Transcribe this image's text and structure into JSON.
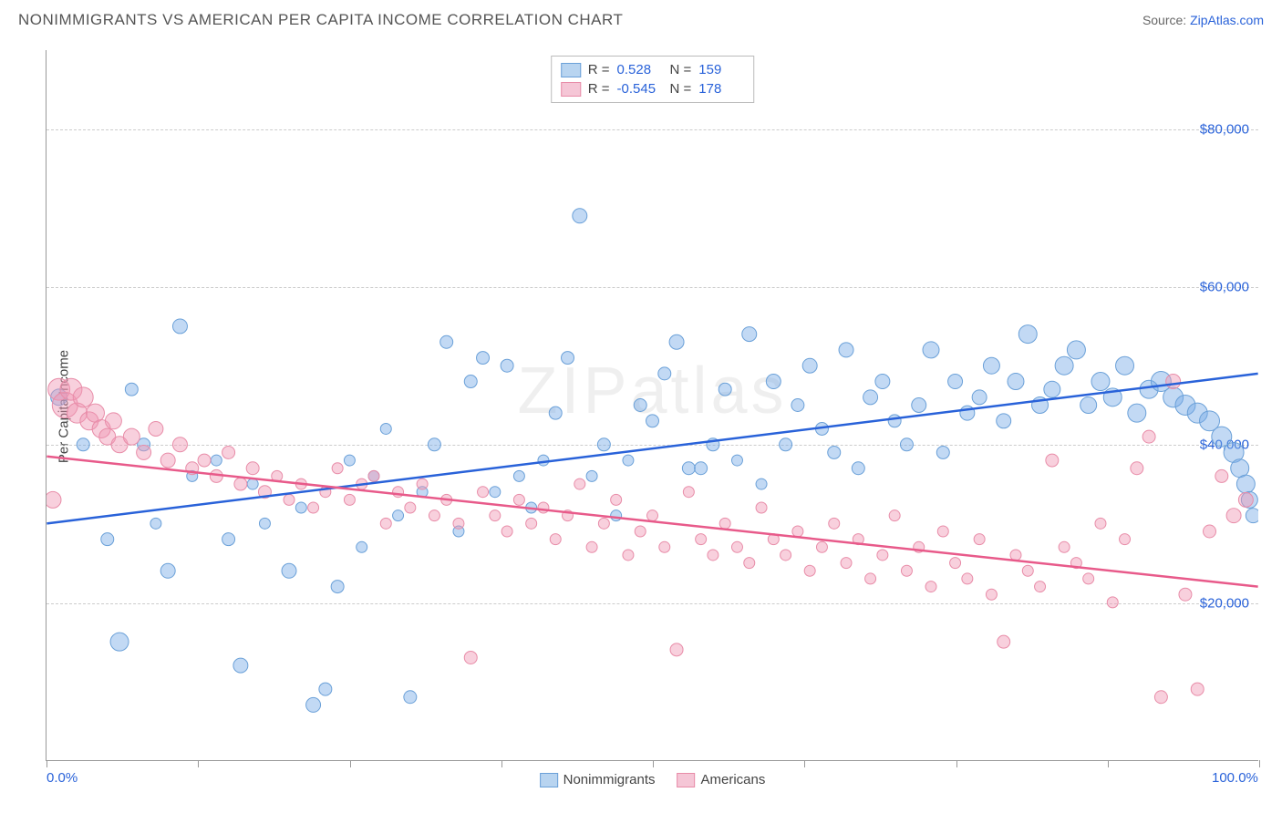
{
  "title": "NONIMMIGRANTS VS AMERICAN PER CAPITA INCOME CORRELATION CHART",
  "source_label": "Source:",
  "source_link": "ZipAtlas.com",
  "y_axis_label": "Per Capita Income",
  "watermark_text": "ZIPatlas",
  "chart": {
    "type": "scatter",
    "background_color": "#ffffff",
    "grid_color": "#cccccc",
    "axis_color": "#999999",
    "xlim": [
      0,
      100
    ],
    "ylim": [
      0,
      90000
    ],
    "x_ticks_pct": [
      0,
      12.5,
      25,
      37.5,
      50,
      62.5,
      75,
      87.5,
      100
    ],
    "x_tick_labels": {
      "0": "0.0%",
      "100": "100.0%"
    },
    "y_ticks": [
      20000,
      40000,
      60000,
      80000
    ],
    "y_tick_labels": [
      "$20,000",
      "$40,000",
      "$60,000",
      "$80,000"
    ],
    "series": [
      {
        "name": "Nonimmigrants",
        "label": "Nonimmigrants",
        "fill_color": "rgba(120,170,230,0.45)",
        "stroke_color": "#6aa0d8",
        "swatch_fill": "#b8d4f0",
        "swatch_border": "#6aa0d8",
        "R_label": "R =",
        "R": "0.528",
        "N_label": "N =",
        "N": "159",
        "trend_color": "#2962d9",
        "trend_y_at_x0": 30000,
        "trend_y_at_x100": 49000,
        "points": [
          [
            1,
            46000,
            9
          ],
          [
            3,
            40000,
            7
          ],
          [
            5,
            28000,
            7
          ],
          [
            6,
            15000,
            10
          ],
          [
            7,
            47000,
            7
          ],
          [
            8,
            40000,
            7
          ],
          [
            9,
            30000,
            6
          ],
          [
            10,
            24000,
            8
          ],
          [
            11,
            55000,
            8
          ],
          [
            12,
            36000,
            6
          ],
          [
            14,
            38000,
            6
          ],
          [
            15,
            28000,
            7
          ],
          [
            16,
            12000,
            8
          ],
          [
            17,
            35000,
            6
          ],
          [
            18,
            30000,
            6
          ],
          [
            20,
            24000,
            8
          ],
          [
            21,
            32000,
            6
          ],
          [
            22,
            7000,
            8
          ],
          [
            23,
            9000,
            7
          ],
          [
            24,
            22000,
            7
          ],
          [
            25,
            38000,
            6
          ],
          [
            26,
            27000,
            6
          ],
          [
            27,
            36000,
            6
          ],
          [
            28,
            42000,
            6
          ],
          [
            29,
            31000,
            6
          ],
          [
            30,
            8000,
            7
          ],
          [
            31,
            34000,
            6
          ],
          [
            32,
            40000,
            7
          ],
          [
            33,
            53000,
            7
          ],
          [
            34,
            29000,
            6
          ],
          [
            35,
            48000,
            7
          ],
          [
            36,
            51000,
            7
          ],
          [
            37,
            34000,
            6
          ],
          [
            38,
            50000,
            7
          ],
          [
            39,
            36000,
            6
          ],
          [
            40,
            32000,
            6
          ],
          [
            41,
            38000,
            6
          ],
          [
            42,
            44000,
            7
          ],
          [
            43,
            51000,
            7
          ],
          [
            44,
            69000,
            8
          ],
          [
            45,
            36000,
            6
          ],
          [
            46,
            40000,
            7
          ],
          [
            47,
            31000,
            6
          ],
          [
            48,
            38000,
            6
          ],
          [
            49,
            45000,
            7
          ],
          [
            50,
            43000,
            7
          ],
          [
            51,
            49000,
            7
          ],
          [
            52,
            53000,
            8
          ],
          [
            53,
            37000,
            7
          ],
          [
            54,
            37000,
            7
          ],
          [
            55,
            40000,
            7
          ],
          [
            56,
            47000,
            7
          ],
          [
            57,
            38000,
            6
          ],
          [
            58,
            54000,
            8
          ],
          [
            59,
            35000,
            6
          ],
          [
            60,
            48000,
            8
          ],
          [
            61,
            40000,
            7
          ],
          [
            62,
            45000,
            7
          ],
          [
            63,
            50000,
            8
          ],
          [
            64,
            42000,
            7
          ],
          [
            65,
            39000,
            7
          ],
          [
            66,
            52000,
            8
          ],
          [
            67,
            37000,
            7
          ],
          [
            68,
            46000,
            8
          ],
          [
            69,
            48000,
            8
          ],
          [
            70,
            43000,
            7
          ],
          [
            71,
            40000,
            7
          ],
          [
            72,
            45000,
            8
          ],
          [
            73,
            52000,
            9
          ],
          [
            74,
            39000,
            7
          ],
          [
            75,
            48000,
            8
          ],
          [
            76,
            44000,
            8
          ],
          [
            77,
            46000,
            8
          ],
          [
            78,
            50000,
            9
          ],
          [
            79,
            43000,
            8
          ],
          [
            80,
            48000,
            9
          ],
          [
            81,
            54000,
            10
          ],
          [
            82,
            45000,
            9
          ],
          [
            83,
            47000,
            9
          ],
          [
            84,
            50000,
            10
          ],
          [
            85,
            52000,
            10
          ],
          [
            86,
            45000,
            9
          ],
          [
            87,
            48000,
            10
          ],
          [
            88,
            46000,
            10
          ],
          [
            89,
            50000,
            10
          ],
          [
            90,
            44000,
            10
          ],
          [
            91,
            47000,
            10
          ],
          [
            92,
            48000,
            11
          ],
          [
            93,
            46000,
            11
          ],
          [
            94,
            45000,
            11
          ],
          [
            95,
            44000,
            11
          ],
          [
            96,
            43000,
            11
          ],
          [
            97,
            41000,
            11
          ],
          [
            98,
            39000,
            11
          ],
          [
            98.5,
            37000,
            10
          ],
          [
            99,
            35000,
            10
          ],
          [
            99.3,
            33000,
            9
          ],
          [
            99.6,
            31000,
            8
          ]
        ]
      },
      {
        "name": "Americans",
        "label": "Americans",
        "fill_color": "rgba(240,150,180,0.45)",
        "stroke_color": "#e88ca8",
        "swatch_fill": "#f5c6d6",
        "swatch_border": "#e88ca8",
        "R_label": "R =",
        "R": "-0.545",
        "N_label": "N =",
        "N": "178",
        "trend_color": "#e85a8a",
        "trend_y_at_x0": 38500,
        "trend_y_at_x100": 22000,
        "points": [
          [
            0.5,
            33000,
            9
          ],
          [
            1,
            47000,
            12
          ],
          [
            1.5,
            45000,
            14
          ],
          [
            2,
            47000,
            12
          ],
          [
            2.5,
            44000,
            11
          ],
          [
            3,
            46000,
            11
          ],
          [
            3.5,
            43000,
            10
          ],
          [
            4,
            44000,
            10
          ],
          [
            4.5,
            42000,
            10
          ],
          [
            5,
            41000,
            9
          ],
          [
            5.5,
            43000,
            9
          ],
          [
            6,
            40000,
            9
          ],
          [
            7,
            41000,
            9
          ],
          [
            8,
            39000,
            8
          ],
          [
            9,
            42000,
            8
          ],
          [
            10,
            38000,
            8
          ],
          [
            11,
            40000,
            8
          ],
          [
            12,
            37000,
            7
          ],
          [
            13,
            38000,
            7
          ],
          [
            14,
            36000,
            7
          ],
          [
            15,
            39000,
            7
          ],
          [
            16,
            35000,
            7
          ],
          [
            17,
            37000,
            7
          ],
          [
            18,
            34000,
            7
          ],
          [
            19,
            36000,
            6
          ],
          [
            20,
            33000,
            6
          ],
          [
            21,
            35000,
            6
          ],
          [
            22,
            32000,
            6
          ],
          [
            23,
            34000,
            6
          ],
          [
            24,
            37000,
            6
          ],
          [
            25,
            33000,
            6
          ],
          [
            26,
            35000,
            6
          ],
          [
            27,
            36000,
            6
          ],
          [
            28,
            30000,
            6
          ],
          [
            29,
            34000,
            6
          ],
          [
            30,
            32000,
            6
          ],
          [
            31,
            35000,
            6
          ],
          [
            32,
            31000,
            6
          ],
          [
            33,
            33000,
            6
          ],
          [
            34,
            30000,
            6
          ],
          [
            35,
            13000,
            7
          ],
          [
            36,
            34000,
            6
          ],
          [
            37,
            31000,
            6
          ],
          [
            38,
            29000,
            6
          ],
          [
            39,
            33000,
            6
          ],
          [
            40,
            30000,
            6
          ],
          [
            41,
            32000,
            6
          ],
          [
            42,
            28000,
            6
          ],
          [
            43,
            31000,
            6
          ],
          [
            44,
            35000,
            6
          ],
          [
            45,
            27000,
            6
          ],
          [
            46,
            30000,
            6
          ],
          [
            47,
            33000,
            6
          ],
          [
            48,
            26000,
            6
          ],
          [
            49,
            29000,
            6
          ],
          [
            50,
            31000,
            6
          ],
          [
            51,
            27000,
            6
          ],
          [
            52,
            14000,
            7
          ],
          [
            53,
            34000,
            6
          ],
          [
            54,
            28000,
            6
          ],
          [
            55,
            26000,
            6
          ],
          [
            56,
            30000,
            6
          ],
          [
            57,
            27000,
            6
          ],
          [
            58,
            25000,
            6
          ],
          [
            59,
            32000,
            6
          ],
          [
            60,
            28000,
            6
          ],
          [
            61,
            26000,
            6
          ],
          [
            62,
            29000,
            6
          ],
          [
            63,
            24000,
            6
          ],
          [
            64,
            27000,
            6
          ],
          [
            65,
            30000,
            6
          ],
          [
            66,
            25000,
            6
          ],
          [
            67,
            28000,
            6
          ],
          [
            68,
            23000,
            6
          ],
          [
            69,
            26000,
            6
          ],
          [
            70,
            31000,
            6
          ],
          [
            71,
            24000,
            6
          ],
          [
            72,
            27000,
            6
          ],
          [
            73,
            22000,
            6
          ],
          [
            74,
            29000,
            6
          ],
          [
            75,
            25000,
            6
          ],
          [
            76,
            23000,
            6
          ],
          [
            77,
            28000,
            6
          ],
          [
            78,
            21000,
            6
          ],
          [
            79,
            15000,
            7
          ],
          [
            80,
            26000,
            6
          ],
          [
            81,
            24000,
            6
          ],
          [
            82,
            22000,
            6
          ],
          [
            83,
            38000,
            7
          ],
          [
            84,
            27000,
            6
          ],
          [
            85,
            25000,
            6
          ],
          [
            86,
            23000,
            6
          ],
          [
            87,
            30000,
            6
          ],
          [
            88,
            20000,
            6
          ],
          [
            89,
            28000,
            6
          ],
          [
            90,
            37000,
            7
          ],
          [
            91,
            41000,
            7
          ],
          [
            92,
            8000,
            7
          ],
          [
            93,
            48000,
            8
          ],
          [
            94,
            21000,
            7
          ],
          [
            95,
            9000,
            7
          ],
          [
            96,
            29000,
            7
          ],
          [
            97,
            36000,
            7
          ],
          [
            98,
            31000,
            8
          ],
          [
            99,
            33000,
            8
          ]
        ]
      }
    ]
  }
}
